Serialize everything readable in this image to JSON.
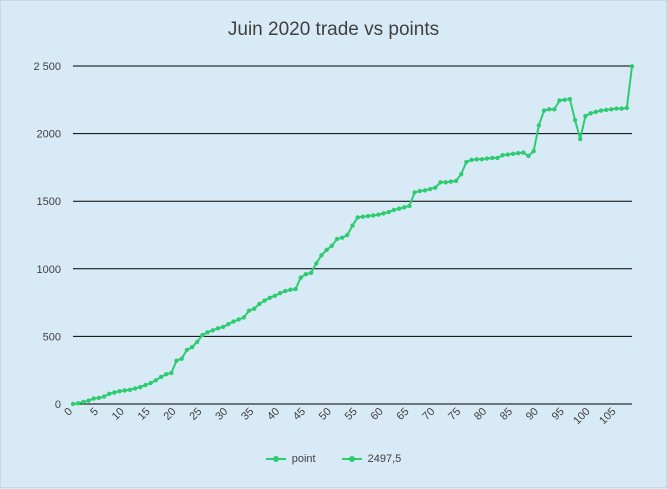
{
  "chart_data": {
    "type": "line",
    "title": "Juin 2020 trade vs points",
    "xlabel": "",
    "ylabel": "",
    "xlim": [
      0,
      108
    ],
    "ylim": [
      0,
      2500
    ],
    "y_ticks": [
      0,
      500,
      1000,
      1500,
      2000,
      2500
    ],
    "y_tick_labels": [
      "0",
      "500",
      "1000",
      "1500",
      "2000",
      "2 500"
    ],
    "x_ticks": [
      0,
      5,
      10,
      15,
      20,
      25,
      30,
      35,
      40,
      45,
      50,
      55,
      60,
      65,
      70,
      75,
      80,
      85,
      90,
      95,
      100,
      105
    ],
    "grid": "horizontal",
    "legend_position": "bottom",
    "legend": [
      "point",
      "2497,5"
    ],
    "series": [
      {
        "name": "point",
        "color": "#2ecc71",
        "values": [
          0,
          5,
          15,
          25,
          40,
          45,
          55,
          75,
          85,
          95,
          100,
          105,
          115,
          125,
          140,
          155,
          175,
          200,
          220,
          230,
          320,
          335,
          400,
          420,
          460,
          510,
          530,
          545,
          560,
          570,
          590,
          610,
          625,
          640,
          690,
          705,
          740,
          765,
          785,
          800,
          820,
          835,
          845,
          850,
          935,
          960,
          970,
          1040,
          1100,
          1140,
          1170,
          1220,
          1230,
          1250,
          1320,
          1380,
          1385,
          1390,
          1395,
          1400,
          1410,
          1420,
          1435,
          1445,
          1455,
          1465,
          1565,
          1575,
          1580,
          1590,
          1600,
          1640,
          1640,
          1645,
          1650,
          1700,
          1790,
          1805,
          1810,
          1810,
          1815,
          1820,
          1820,
          1840,
          1845,
          1850,
          1855,
          1860,
          1835,
          1870,
          2060,
          2170,
          2180,
          2180,
          2245,
          2250,
          2255,
          2100,
          1960,
          2130,
          2150,
          2160,
          2170,
          2175,
          2180,
          2185,
          2185,
          2190,
          2497.5
        ]
      },
      {
        "name": "2497,5",
        "color": "#2ecc71",
        "values": []
      }
    ]
  }
}
